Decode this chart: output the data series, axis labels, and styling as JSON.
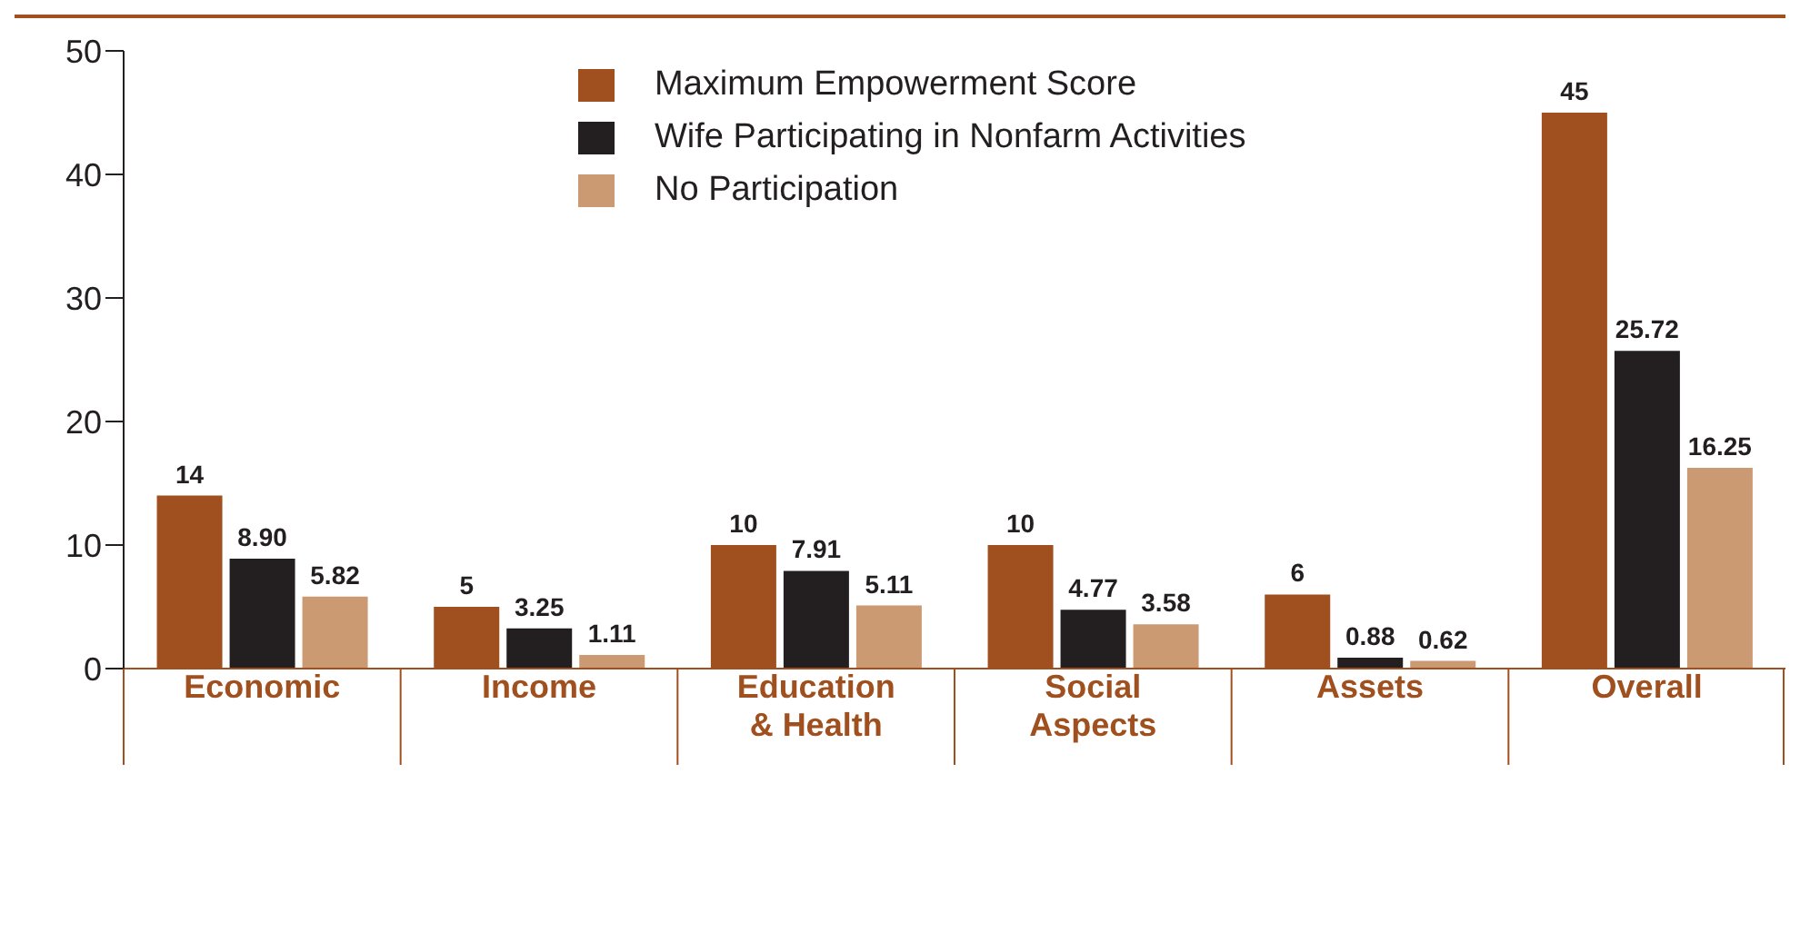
{
  "chart_data": {
    "type": "bar",
    "categories": [
      "Economic",
      "Income",
      "Education & Health",
      "Social Aspects",
      "Assets",
      "Overall"
    ],
    "series": [
      {
        "name": "Maximum Empowerment Score",
        "color": "#a0501e",
        "values": [
          14,
          5,
          10,
          10,
          6,
          45
        ],
        "value_labels": [
          "14",
          "5",
          "10",
          "10",
          "6",
          "45"
        ]
      },
      {
        "name": "Wife Participating in Nonfarm Activities",
        "color": "#231f20",
        "values": [
          8.9,
          3.25,
          7.91,
          4.77,
          0.88,
          25.72
        ],
        "value_labels": [
          "8.90",
          "3.25",
          "7.91",
          "4.77",
          "0.88",
          "25.72"
        ]
      },
      {
        "name": "No Participation",
        "color": "#cc9a72",
        "values": [
          5.82,
          1.11,
          5.11,
          3.58,
          0.62,
          16.25
        ],
        "value_labels": [
          "5.82",
          "1.11",
          "5.11",
          "3.58",
          "0.62",
          "16.25"
        ]
      }
    ],
    "ylim": [
      0,
      50
    ],
    "yticks": [
      0,
      10,
      20,
      30,
      40,
      50
    ],
    "legend": "top"
  }
}
